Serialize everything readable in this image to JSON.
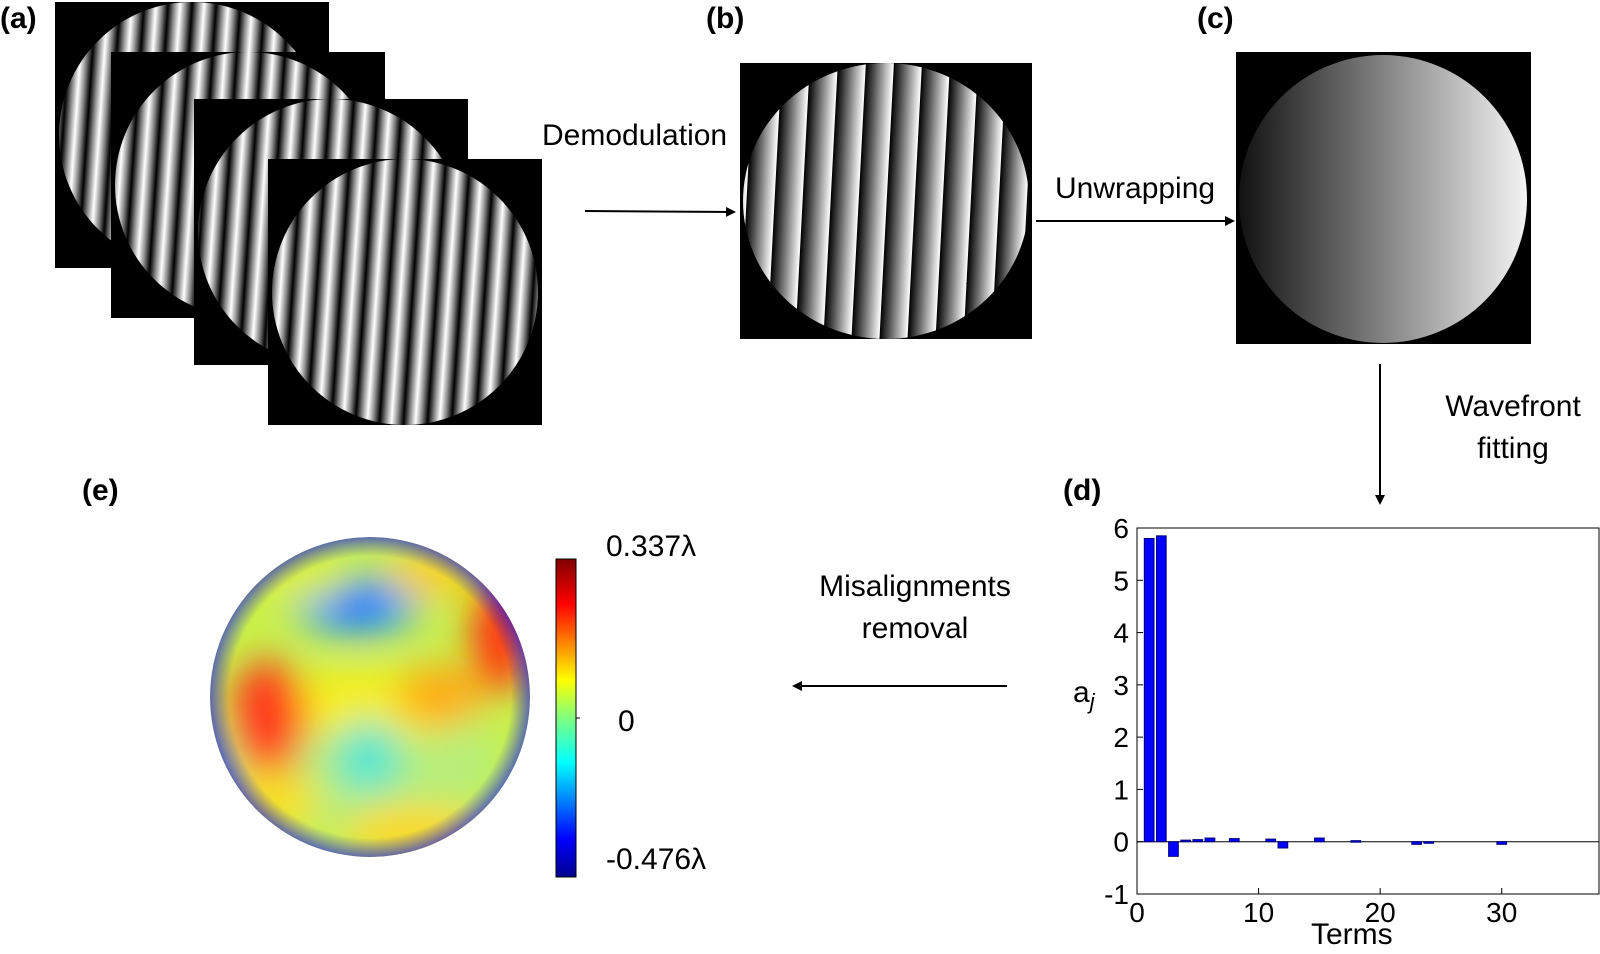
{
  "panels": {
    "a": "(a)",
    "b": "(b)",
    "c": "(c)",
    "d": "(d)",
    "e": "(e)"
  },
  "steps": {
    "demodulation": "Demodulation",
    "unwrapping": "Unwrapping",
    "wavefront_fitting": [
      "Wavefront",
      "fitting"
    ],
    "misalignments_removal": [
      "Misalignments",
      "removal"
    ]
  },
  "colorbar": {
    "max_label": "0.337λ",
    "mid_label": "0",
    "min_label": "-0.476λ",
    "colormap": "jet"
  },
  "chart_data": {
    "type": "bar",
    "panel": "(d)",
    "xlabel": "Terms",
    "ylabel": "a_j",
    "ylabel_main": "a",
    "ylabel_sub": "j",
    "xlim": [
      0,
      38
    ],
    "ylim": [
      -1,
      6
    ],
    "xticks": [
      0,
      10,
      20,
      30
    ],
    "yticks": [
      -1,
      0,
      1,
      2,
      3,
      4,
      5,
      6
    ],
    "bar_color": "#0000ff",
    "x": [
      1,
      2,
      3,
      4,
      5,
      6,
      8,
      11,
      12,
      15,
      18,
      23,
      24,
      30
    ],
    "values": [
      5.8,
      5.85,
      -0.28,
      0.03,
      0.04,
      0.07,
      0.06,
      0.05,
      -0.12,
      0.07,
      0.02,
      -0.05,
      -0.03,
      -0.05
    ]
  }
}
